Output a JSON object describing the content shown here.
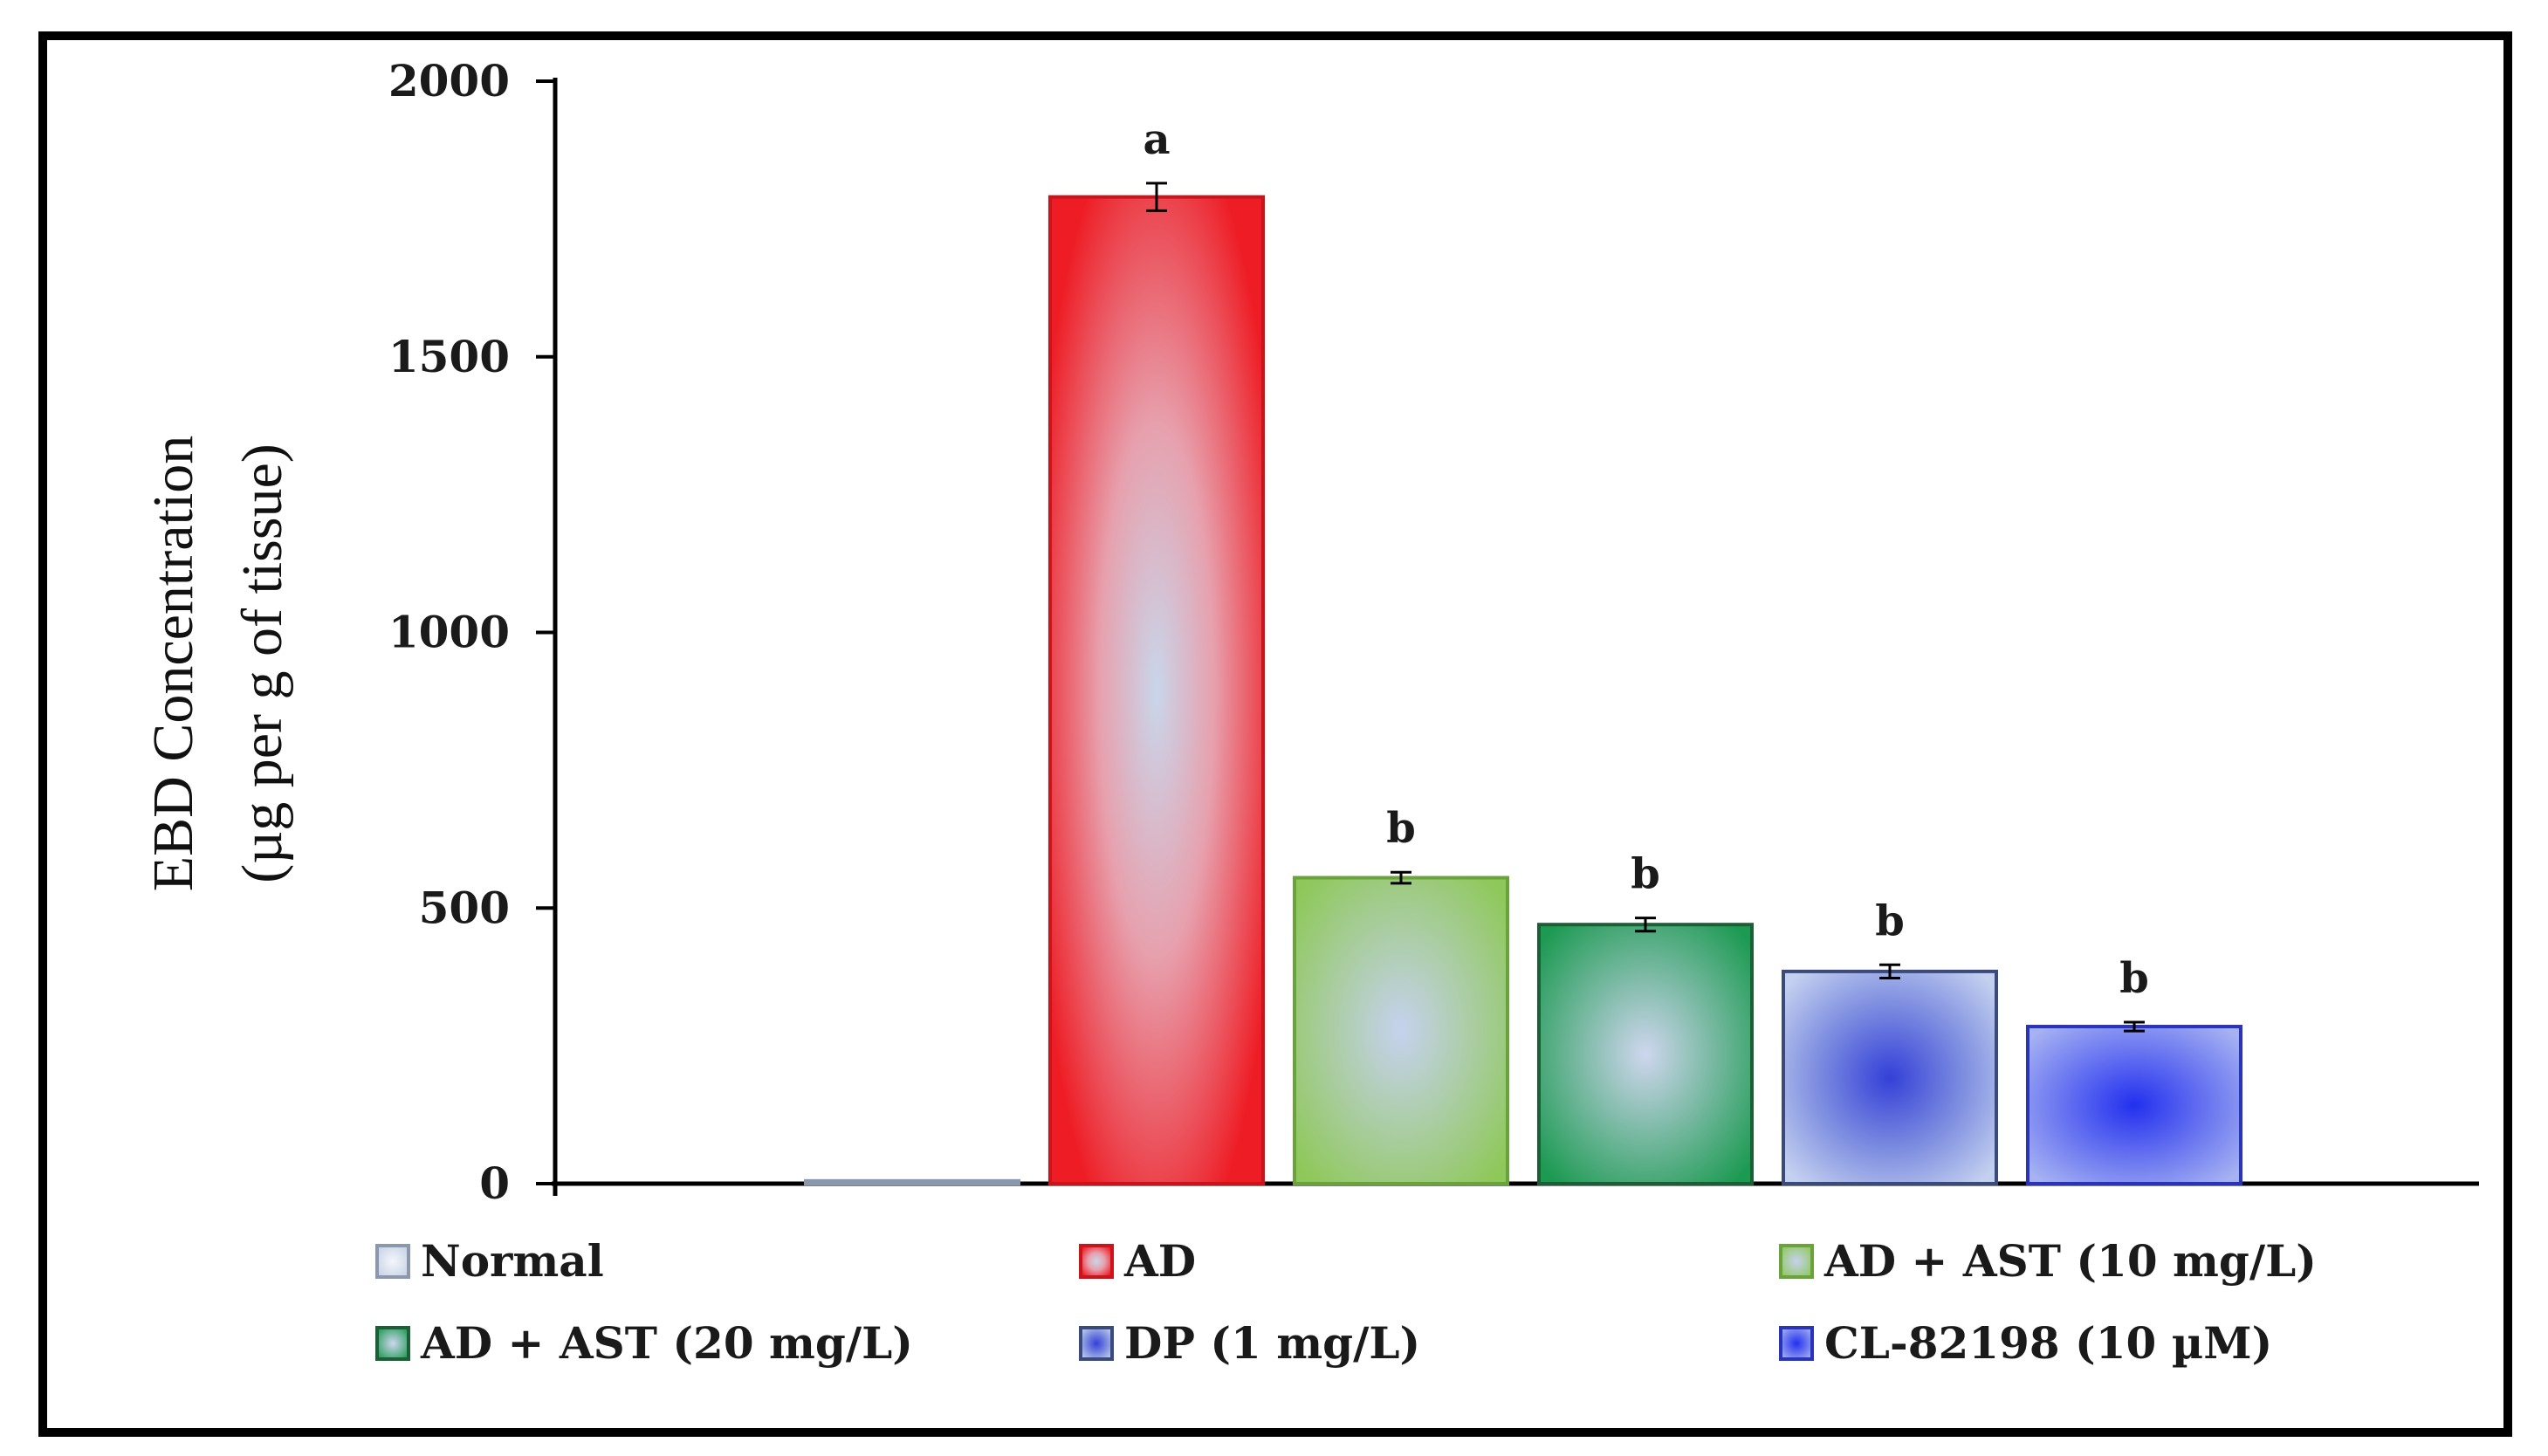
{
  "chart_data": {
    "type": "bar",
    "title": "",
    "xlabel": "",
    "ylabel_line1": "EBD Concentration",
    "ylabel_line2": "(µg per g of tissue)",
    "ylim": [
      0,
      2000
    ],
    "yticks": [
      0,
      500,
      1000,
      1500,
      2000
    ],
    "categories": [
      "Normal",
      "AD",
      "AD + AST (10 mg/L)",
      "AD + AST (20 mg/L)",
      "DP (1 mg/L)",
      "CL-82198 (10 µM)"
    ],
    "values": [
      5,
      1790,
      555,
      470,
      385,
      285
    ],
    "errors": [
      0,
      25,
      10,
      12,
      12,
      8
    ],
    "significance": [
      "",
      "a",
      "b",
      "b",
      "b",
      "b"
    ],
    "colors": [
      "#dce3ef",
      "#ee2024",
      "#8fc85a",
      "#1f9a55",
      "#4b5fd0",
      "#3340e6"
    ],
    "legend": {
      "placement": "bottom",
      "entries": [
        "Normal",
        "AD",
        "AD + AST (10 mg/L)",
        "AD + AST (20 mg/L)",
        "DP (1 mg/L)",
        "CL-82198 (10 µM)"
      ]
    },
    "grid": false
  }
}
